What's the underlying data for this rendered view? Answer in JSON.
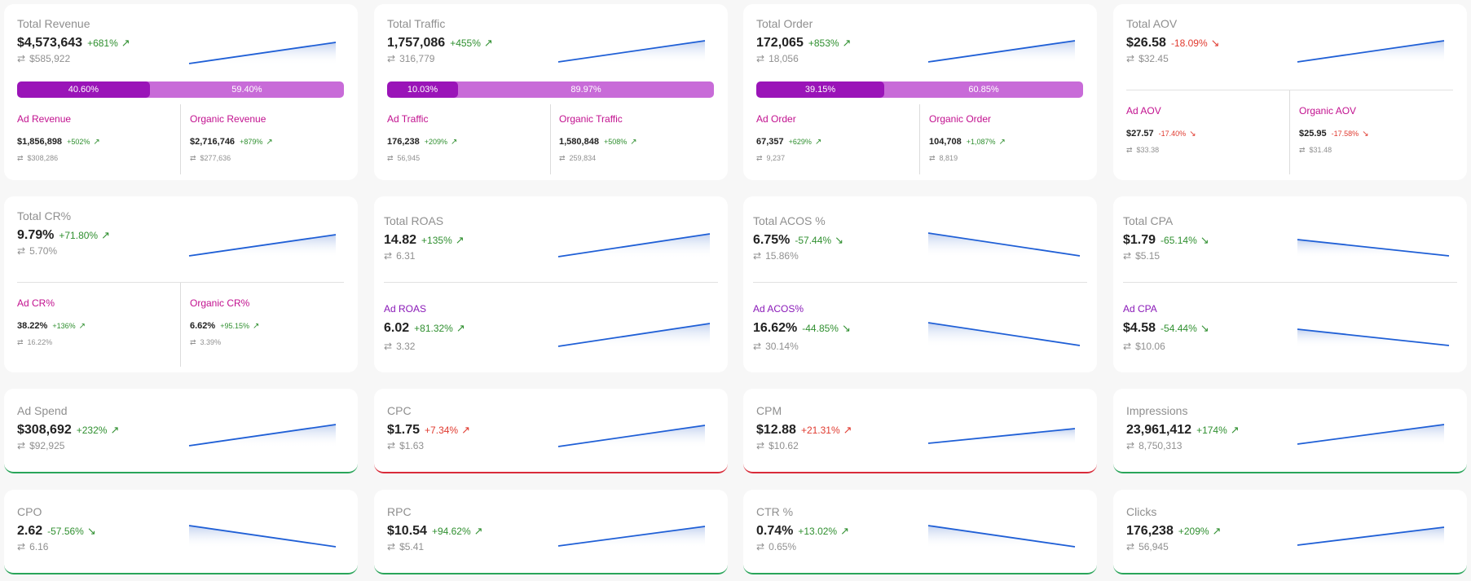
{
  "swap_icon": "arrows-swap-icon",
  "colors": {
    "good": "#2f8f2f",
    "bad": "#e03a2f",
    "ad_bar": "#9a14b8",
    "organic_bar": "#c86bd8",
    "line": "#1f5fd6",
    "accent_pink": "#c2118f",
    "accent_purple": "#8a19b8",
    "border_good": "#2aa55a",
    "border_bad": "#d92c3a"
  },
  "cards": {
    "total_revenue": {
      "title": "Total Revenue",
      "value": "$4,573,643",
      "change": "+681%",
      "prev": "$585,922",
      "bar": [
        "40.60%",
        "59.40%"
      ],
      "left": {
        "title": "Ad Revenue",
        "value": "$1,856,898",
        "change": "+502%",
        "prev": "$308,286"
      },
      "right": {
        "title": "Organic Revenue",
        "value": "$2,716,746",
        "change": "+879%",
        "prev": "$277,636"
      }
    },
    "total_traffic": {
      "title": "Total Traffic",
      "value": "1,757,086",
      "change": "+455%",
      "prev": "316,779",
      "bar": [
        "10.03%",
        "89.97%"
      ],
      "left": {
        "title": "Ad Traffic",
        "value": "176,238",
        "change": "+209%",
        "prev": "56,945"
      },
      "right": {
        "title": "Organic Traffic",
        "value": "1,580,848",
        "change": "+508%",
        "prev": "259,834"
      }
    },
    "total_order": {
      "title": "Total Order",
      "value": "172,065",
      "change": "+853%",
      "prev": "18,056",
      "bar": [
        "39.15%",
        "60.85%"
      ],
      "left": {
        "title": "Ad Order",
        "value": "67,357",
        "change": "+629%",
        "prev": "9,237"
      },
      "right": {
        "title": "Organic Order",
        "value": "104,708",
        "change": "+1,087%",
        "prev": "8,819"
      }
    },
    "total_aov": {
      "title": "Total AOV",
      "value": "$26.58",
      "change": "-18.09%",
      "prev": "$32.45",
      "left": {
        "title": "Ad AOV",
        "value": "$27.57",
        "change": "-17.40%",
        "prev": "$33.38"
      },
      "right": {
        "title": "Organic AOV",
        "value": "$25.95",
        "change": "-17.58%",
        "prev": "$31.48"
      }
    },
    "total_cr": {
      "title": "Total CR%",
      "value": "9.79%",
      "change": "+71.80%",
      "prev": "5.70%",
      "left": {
        "title": "Ad CR%",
        "value": "38.22%",
        "change": "+136%",
        "prev": "16.22%"
      },
      "right": {
        "title": "Organic CR%",
        "value": "6.62%",
        "change": "+95.15%",
        "prev": "3.39%"
      }
    },
    "total_roas": {
      "title": "Total ROAS",
      "value": "14.82",
      "change": "+135%",
      "prev": "6.31",
      "sub": {
        "title": "Ad ROAS",
        "value": "6.02",
        "change": "+81.32%",
        "prev": "3.32"
      }
    },
    "total_acos": {
      "title": "Total ACOS %",
      "value": "6.75%",
      "change": "-57.44%",
      "prev": "15.86%",
      "sub": {
        "title": "Ad ACOS%",
        "value": "16.62%",
        "change": "-44.85%",
        "prev": "30.14%"
      }
    },
    "total_cpa": {
      "title": "Total CPA",
      "value": "$1.79",
      "change": "-65.14%",
      "prev": "$5.15",
      "sub": {
        "title": "Ad CPA",
        "value": "$4.58",
        "change": "-54.44%",
        "prev": "$10.06"
      }
    },
    "ad_spend": {
      "title": "Ad Spend",
      "value": "$308,692",
      "change": "+232%",
      "prev": "$92,925"
    },
    "cpc": {
      "title": "CPC",
      "value": "$1.75",
      "change": "+7.34%",
      "prev": "$1.63"
    },
    "cpm": {
      "title": "CPM",
      "value": "$12.88",
      "change": "+21.31%",
      "prev": "$10.62"
    },
    "impressions": {
      "title": "Impressions",
      "value": "23,961,412",
      "change": "+174%",
      "prev": "8,750,313"
    },
    "cpo": {
      "title": "CPO",
      "value": "2.62",
      "change": "-57.56%",
      "prev": "6.16"
    },
    "rpc": {
      "title": "RPC",
      "value": "$10.54",
      "change": "+94.62%",
      "prev": "$5.41"
    },
    "ctr": {
      "title": "CTR %",
      "value": "0.74%",
      "change": "+13.02%",
      "prev": "0.65%"
    },
    "clicks": {
      "title": "Clicks",
      "value": "176,238",
      "change": "+209%",
      "prev": "56,945"
    }
  }
}
